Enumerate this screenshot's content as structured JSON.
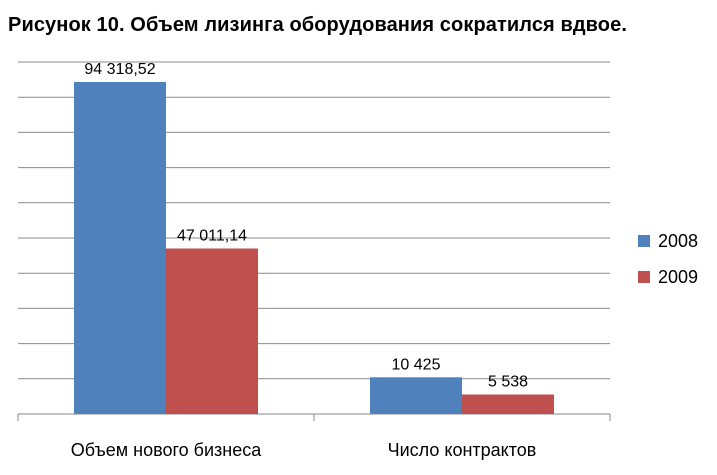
{
  "chart_data": {
    "type": "bar",
    "title": "Рисунок 10. Объем лизинга оборудования сократился вдвое.",
    "categories": [
      "Объем нового бизнеса",
      "Число контрактов"
    ],
    "series": [
      {
        "name": "2008",
        "values": [
          94318.52,
          10425
        ],
        "labels": [
          "94 318,52",
          "10 425"
        ],
        "color": "#4f81bd"
      },
      {
        "name": "2009",
        "values": [
          47011.14,
          5538
        ],
        "labels": [
          "47 011,14",
          "5 538"
        ],
        "color": "#c0504d"
      }
    ],
    "ylim": [
      0,
      100000
    ],
    "grid": true,
    "legend_position": "right"
  }
}
